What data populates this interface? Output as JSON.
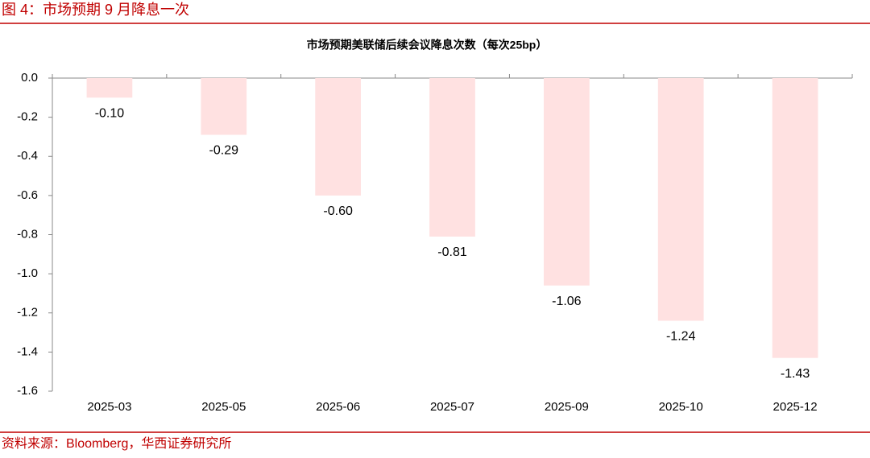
{
  "header": {
    "title": "图 4：市场预期 9 月降息一次"
  },
  "source": "资料来源：Bloomberg，华西证券研究所",
  "chart_data": {
    "type": "bar",
    "title": "市场预期美联储后续会议降息次数（每次25bp）",
    "categories": [
      "2025-03",
      "2025-05",
      "2025-06",
      "2025-07",
      "2025-09",
      "2025-10",
      "2025-12"
    ],
    "values": [
      -0.1,
      -0.29,
      -0.6,
      -0.81,
      -1.06,
      -1.24,
      -1.43
    ],
    "value_labels": [
      "-0.10",
      "-0.29",
      "-0.60",
      "-0.81",
      "-1.06",
      "-1.24",
      "-1.43"
    ],
    "color": "#ffe1e1",
    "ylim": [
      -1.6,
      0
    ],
    "yticks": [
      {
        "value": 0,
        "label": "0.0"
      },
      {
        "value": -0.2,
        "label": "-0.2"
      },
      {
        "value": -0.4,
        "label": "-0.4"
      },
      {
        "value": -0.6,
        "label": "-0.6"
      },
      {
        "value": -0.8,
        "label": "-0.8"
      },
      {
        "value": -1,
        "label": "-1.0"
      },
      {
        "value": -1.2,
        "label": "-1.2"
      },
      {
        "value": -1.4,
        "label": "-1.4"
      },
      {
        "value": -1.6,
        "label": "-1.6"
      }
    ],
    "grid": false
  }
}
